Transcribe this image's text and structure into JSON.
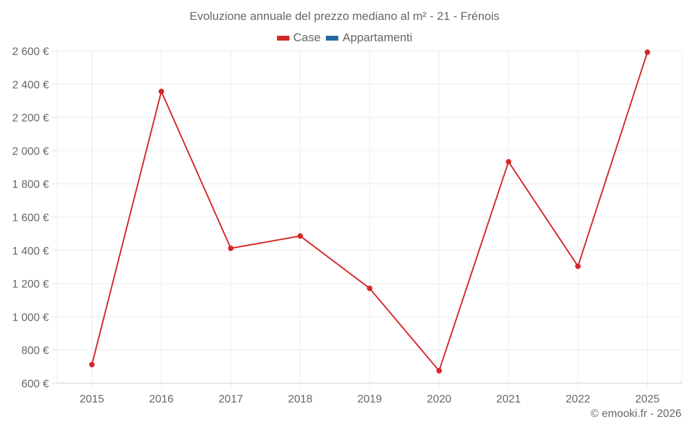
{
  "chart_data": {
    "type": "line",
    "title": "Evoluzione annuale del prezzo mediano al m² - 21 - Frénois",
    "xlabel": "",
    "ylabel": "",
    "categories": [
      "2015",
      "2016",
      "2017",
      "2018",
      "2019",
      "2020",
      "2021",
      "2022",
      "2025"
    ],
    "series": [
      {
        "name": "Case",
        "color": "#d62728",
        "values": [
          712,
          2356,
          1412,
          1486,
          1171,
          675,
          1933,
          1304,
          2592
        ]
      },
      {
        "name": "Appartamenti",
        "color": "#1f6aa5",
        "values": []
      }
    ],
    "ylim": [
      600,
      2600
    ],
    "yticks": [
      600,
      800,
      1000,
      1200,
      1400,
      1600,
      1800,
      2000,
      2200,
      2400,
      2600
    ],
    "ytick_labels": [
      "600 €",
      "800 €",
      "1 000 €",
      "1 200 €",
      "1 400 €",
      "1 600 €",
      "1 800 €",
      "2 000 €",
      "2 200 €",
      "2 400 €",
      "2 600 €"
    ],
    "grid": true,
    "legend_position": "top"
  },
  "header": {
    "title": "Evoluzione annuale del prezzo mediano al m² - 21 - Frénois"
  },
  "legend": {
    "items": [
      {
        "label": "Case",
        "color": "#d62728"
      },
      {
        "label": "Appartamenti",
        "color": "#1f6aa5"
      }
    ]
  },
  "footer": {
    "credit": "© emooki.fr - 2026"
  }
}
